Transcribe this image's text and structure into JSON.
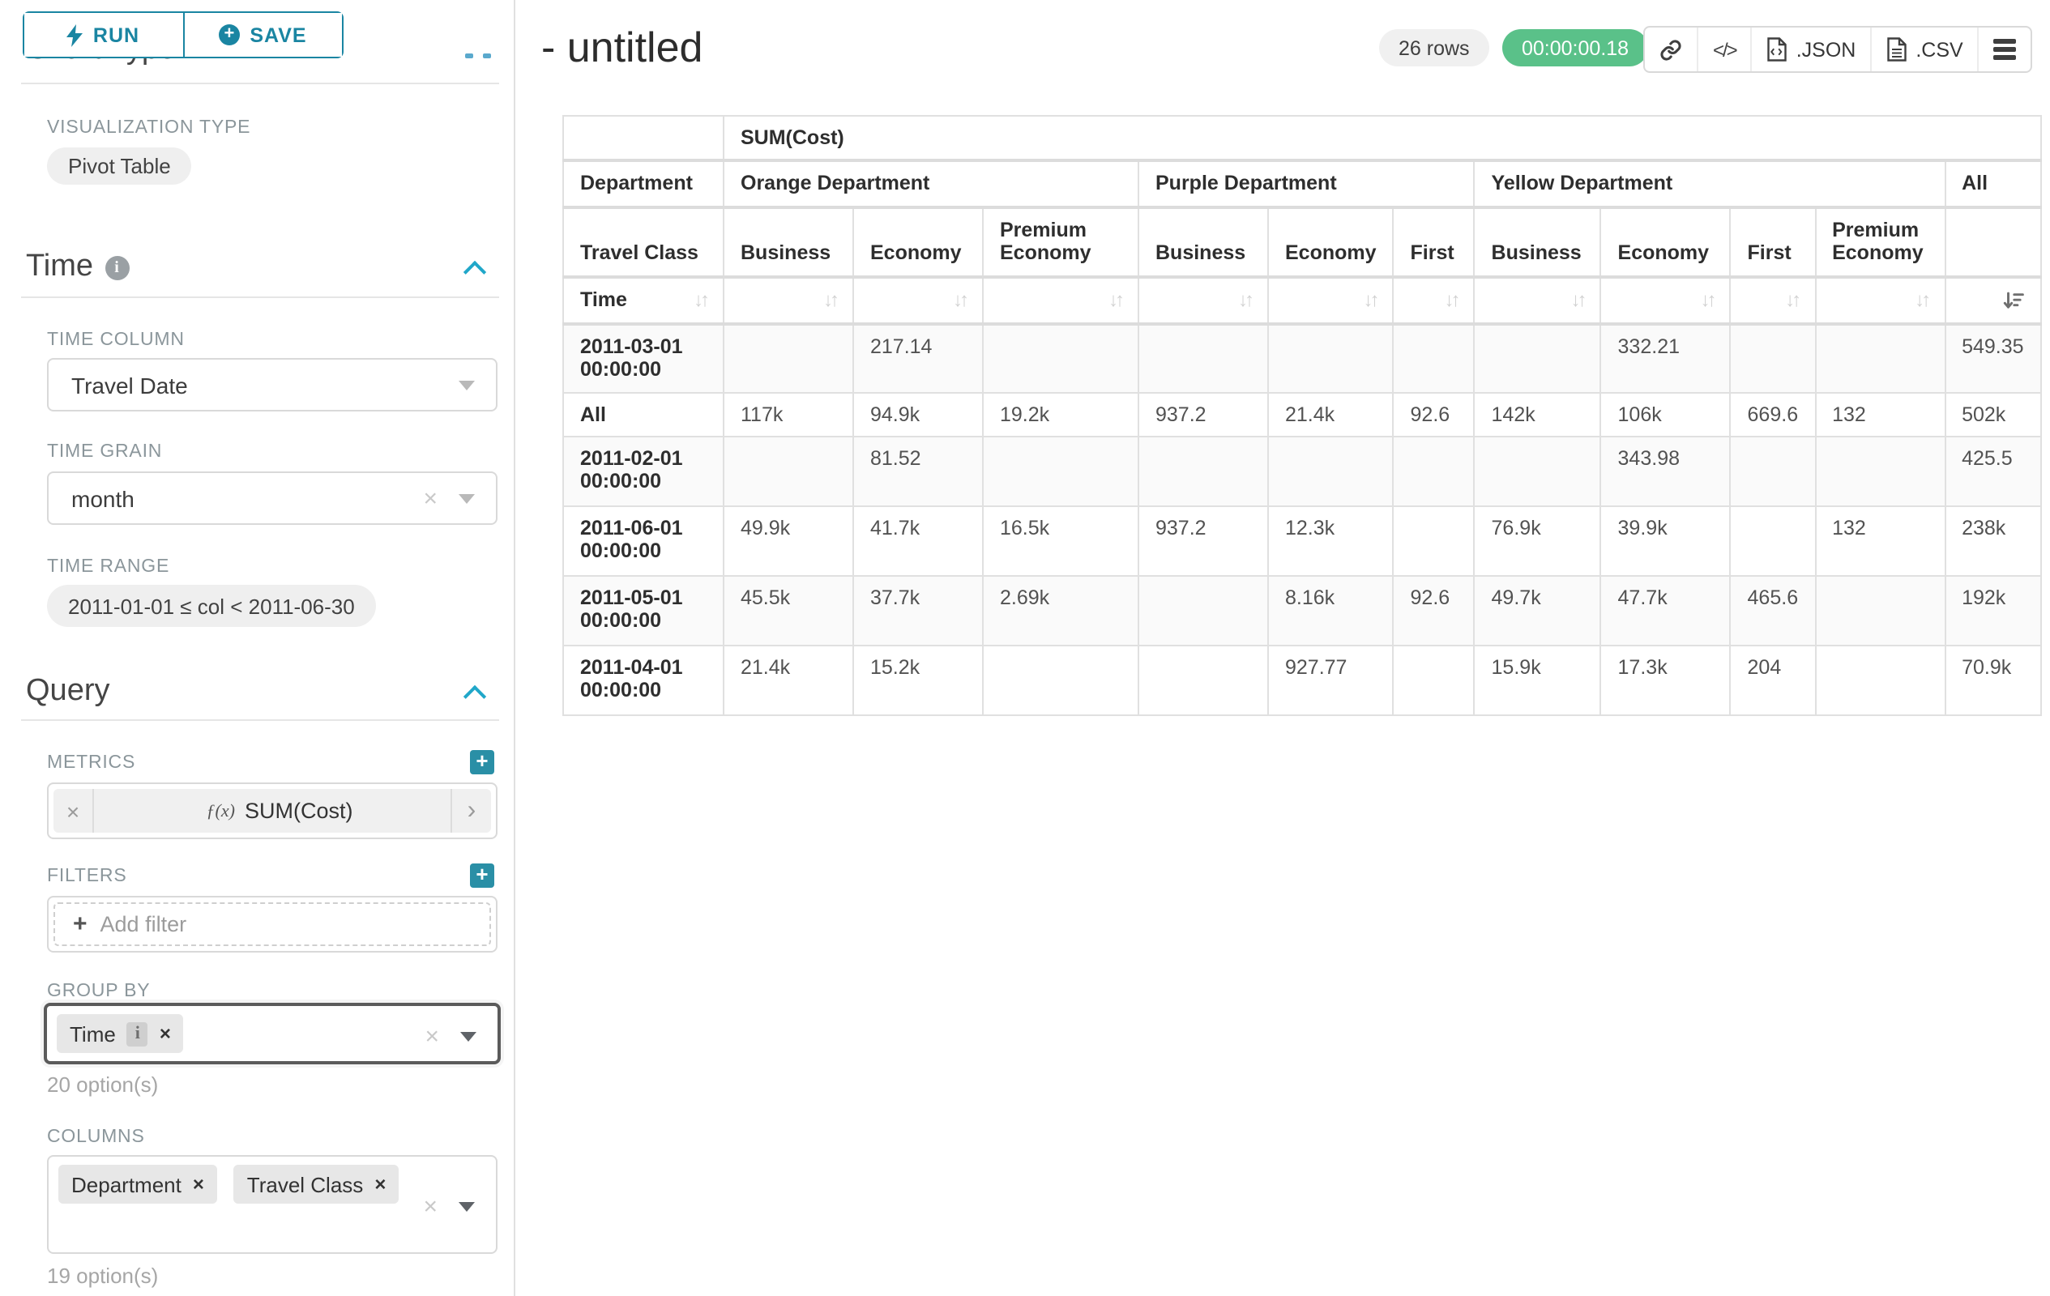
{
  "sidebar": {
    "run_label": "RUN",
    "save_label": "SAVE",
    "chart_type": {
      "heading": "Chart Type",
      "viz_label": "VISUALIZATION TYPE",
      "viz_value": "Pivot Table"
    },
    "time": {
      "heading": "Time",
      "time_column_label": "TIME COLUMN",
      "time_column_value": "Travel Date",
      "time_grain_label": "TIME GRAIN",
      "time_grain_value": "month",
      "time_range_label": "TIME RANGE",
      "time_range_value": "2011-01-01 ≤ col < 2011-06-30"
    },
    "query": {
      "heading": "Query",
      "metrics_label": "METRICS",
      "metric_fx": "ƒ(x)",
      "metric_value": "SUM(Cost)",
      "filters_label": "FILTERS",
      "add_filter_label": "Add filter",
      "group_by_label": "GROUP BY",
      "group_by_tags": [
        {
          "label": "Time",
          "has_info": true
        }
      ],
      "group_by_options": "20 option(s)",
      "columns_label": "COLUMNS",
      "columns_tags": [
        {
          "label": "Department"
        },
        {
          "label": "Travel Class"
        }
      ],
      "columns_options": "19 option(s)"
    }
  },
  "header": {
    "title": "- untitled",
    "rows_badge": "26 rows",
    "timer_badge": "00:00:00.18",
    "json_label": ".JSON",
    "csv_label": ".CSV"
  },
  "pivot_table": {
    "metric_label": "SUM(Cost)",
    "col_dim_label": "Department",
    "col_dim2_label": "Travel Class",
    "row_dim_label": "Time",
    "groups": [
      {
        "name": "Orange Department",
        "cols": [
          "Business",
          "Economy",
          "Premium Economy"
        ]
      },
      {
        "name": "Purple Department",
        "cols": [
          "Business",
          "Economy",
          "First"
        ]
      },
      {
        "name": "Yellow Department",
        "cols": [
          "Business",
          "Economy",
          "First",
          "Premium Economy"
        ]
      },
      {
        "name": "All",
        "cols": [
          ""
        ]
      }
    ],
    "rows": [
      {
        "label": "2011-03-01 00:00:00",
        "values": [
          "",
          "217.14",
          "",
          "",
          "",
          "",
          "",
          "332.21",
          "",
          "",
          "549.35"
        ]
      },
      {
        "label": "All",
        "values": [
          "117k",
          "94.9k",
          "19.2k",
          "937.2",
          "21.4k",
          "92.6",
          "142k",
          "106k",
          "669.6",
          "132",
          "502k"
        ]
      },
      {
        "label": "2011-02-01 00:00:00",
        "values": [
          "",
          "81.52",
          "",
          "",
          "",
          "",
          "",
          "343.98",
          "",
          "",
          "425.5"
        ]
      },
      {
        "label": "2011-06-01 00:00:00",
        "values": [
          "49.9k",
          "41.7k",
          "16.5k",
          "937.2",
          "12.3k",
          "",
          "76.9k",
          "39.9k",
          "",
          "132",
          "238k"
        ]
      },
      {
        "label": "2011-05-01 00:00:00",
        "values": [
          "45.5k",
          "37.7k",
          "2.69k",
          "",
          "8.16k",
          "92.6",
          "49.7k",
          "47.7k",
          "465.6",
          "",
          "192k"
        ]
      },
      {
        "label": "2011-04-01 00:00:00",
        "values": [
          "21.4k",
          "15.2k",
          "",
          "",
          "927.77",
          "",
          "15.9k",
          "17.3k",
          "204",
          "",
          "70.9k"
        ]
      }
    ]
  }
}
